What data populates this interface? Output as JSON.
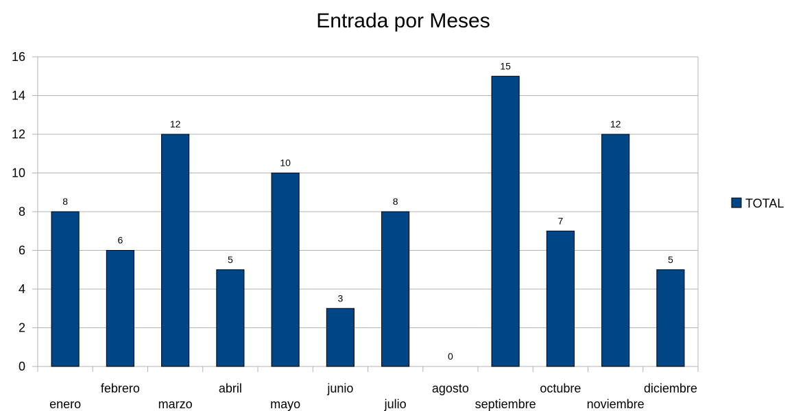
{
  "chart_data": {
    "type": "bar",
    "title": "Entrada por Meses",
    "xlabel": "",
    "ylabel": "",
    "categories": [
      "enero",
      "febrero",
      "marzo",
      "abril",
      "mayo",
      "junio",
      "julio",
      "agosto",
      "septiembre",
      "octubre",
      "noviembre",
      "diciembre"
    ],
    "series": [
      {
        "name": "TOTAL",
        "color": "#004586",
        "values": [
          8,
          6,
          12,
          5,
          10,
          3,
          8,
          0,
          15,
          7,
          12,
          5
        ]
      }
    ],
    "ylim": [
      0,
      16
    ],
    "yticks": [
      0,
      2,
      4,
      6,
      8,
      10,
      12,
      14,
      16
    ],
    "grid": true,
    "data_labels": true,
    "legend_position": "right",
    "category_labels_staggered": true
  },
  "colors": {
    "bar": "#004586",
    "grid": "#b3b3b3",
    "axis": "#b3b3b3"
  }
}
